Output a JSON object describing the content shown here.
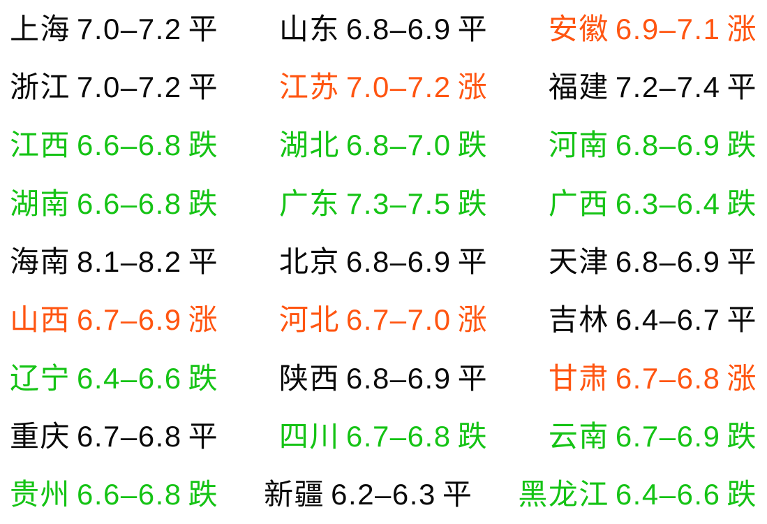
{
  "board": {
    "status_labels": {
      "flat": "平",
      "rise": "涨",
      "fall": "跌"
    },
    "colors": {
      "background": "#ffffff",
      "flat": "#0a0a0a",
      "rise": "#ff5511",
      "fall": "#15c315"
    },
    "rows": [
      {
        "items": [
          {
            "name": "上海",
            "range": "7.0–7.2",
            "status": "平",
            "trend": "flat"
          },
          {
            "name": "山东",
            "range": "6.8–6.9",
            "status": "平",
            "trend": "flat"
          },
          {
            "name": "安徽",
            "range": "6.9–7.1",
            "status": "涨",
            "trend": "rise"
          }
        ]
      },
      {
        "items": [
          {
            "name": "浙江",
            "range": "7.0–7.2",
            "status": "平",
            "trend": "flat"
          },
          {
            "name": "江苏",
            "range": "7.0–7.2",
            "status": "涨",
            "trend": "rise"
          },
          {
            "name": "福建",
            "range": "7.2–7.4",
            "status": "平",
            "trend": "flat"
          }
        ]
      },
      {
        "items": [
          {
            "name": "江西",
            "range": "6.6–6.8",
            "status": "跌",
            "trend": "fall"
          },
          {
            "name": "湖北",
            "range": "6.8–7.0",
            "status": "跌",
            "trend": "fall"
          },
          {
            "name": "河南",
            "range": "6.8–6.9",
            "status": "跌",
            "trend": "fall"
          }
        ]
      },
      {
        "items": [
          {
            "name": "湖南",
            "range": "6.6–6.8",
            "status": "跌",
            "trend": "fall"
          },
          {
            "name": "广东",
            "range": "7.3–7.5",
            "status": "跌",
            "trend": "fall"
          },
          {
            "name": "广西",
            "range": "6.3–6.4",
            "status": "跌",
            "trend": "fall"
          }
        ]
      },
      {
        "items": [
          {
            "name": "海南",
            "range": "8.1–8.2",
            "status": "平",
            "trend": "flat"
          },
          {
            "name": "北京",
            "range": "6.8–6.9",
            "status": "平",
            "trend": "flat"
          },
          {
            "name": "天津",
            "range": "6.8–6.9",
            "status": "平",
            "trend": "flat"
          }
        ]
      },
      {
        "items": [
          {
            "name": "山西",
            "range": "6.7–6.9",
            "status": "涨",
            "trend": "rise"
          },
          {
            "name": "河北",
            "range": "6.7–7.0",
            "status": "涨",
            "trend": "rise"
          },
          {
            "name": "吉林",
            "range": "6.4–6.7",
            "status": "平",
            "trend": "flat"
          }
        ]
      },
      {
        "items": [
          {
            "name": "辽宁",
            "range": "6.4–6.6",
            "status": "跌",
            "trend": "fall"
          },
          {
            "name": "陕西",
            "range": "6.8–6.9",
            "status": "平",
            "trend": "flat"
          },
          {
            "name": "甘肃",
            "range": "6.7–6.8",
            "status": "涨",
            "trend": "rise"
          }
        ]
      },
      {
        "items": [
          {
            "name": "重庆",
            "range": "6.7–6.8",
            "status": "平",
            "trend": "flat"
          },
          {
            "name": "四川",
            "range": "6.7–6.8",
            "status": "跌",
            "trend": "fall"
          },
          {
            "name": "云南",
            "range": "6.7–6.9",
            "status": "跌",
            "trend": "fall"
          }
        ]
      },
      {
        "items": [
          {
            "name": "贵州",
            "range": "6.6–6.8",
            "status": "跌",
            "trend": "fall"
          },
          {
            "name": "新疆",
            "range": "6.2–6.3",
            "status": "平",
            "trend": "flat"
          },
          {
            "name": "黑龙江",
            "range": "6.4–6.6",
            "status": "跌",
            "trend": "fall"
          }
        ]
      }
    ]
  }
}
